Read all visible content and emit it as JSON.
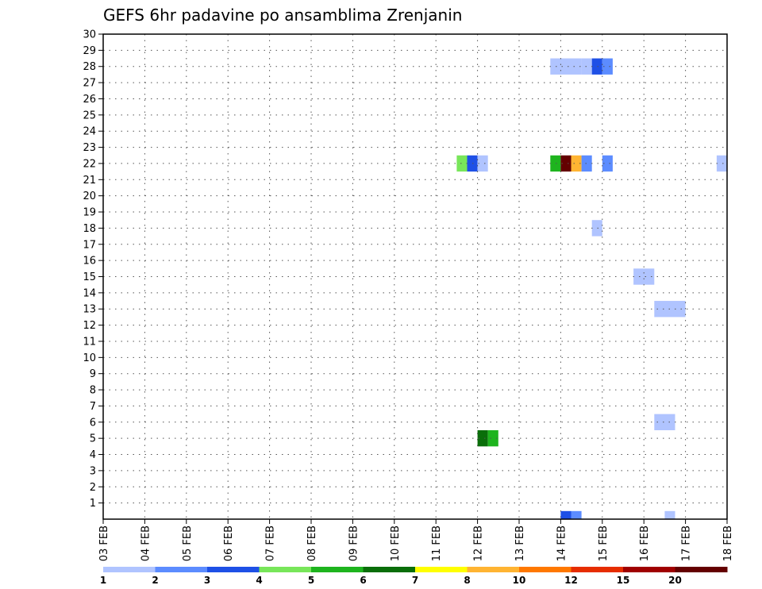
{
  "chart_data": {
    "type": "heatmap",
    "title": "GEFS 6hr padavine po ansamblima Zrenjanin",
    "x_tick_labels": [
      "03 FEB",
      "04 FEB",
      "05 FEB",
      "06 FEB",
      "07 FEB",
      "08 FEB",
      "09 FEB",
      "10 FEB",
      "11 FEB",
      "12 FEB",
      "13 FEB",
      "14 FEB",
      "15 FEB",
      "16 FEB",
      "17 FEB",
      "18 FEB"
    ],
    "x_range_days": [
      0,
      15
    ],
    "y_tick_labels": [
      "1",
      "2",
      "3",
      "4",
      "5",
      "6",
      "7",
      "8",
      "9",
      "10",
      "11",
      "12",
      "13",
      "14",
      "15",
      "16",
      "17",
      "18",
      "19",
      "20",
      "21",
      "22",
      "23",
      "24",
      "25",
      "26",
      "27",
      "28",
      "29",
      "30"
    ],
    "y_range": [
      0,
      30
    ],
    "grid": true,
    "colorbar": {
      "colors": [
        "#b0c4ff",
        "#5c8cff",
        "#1e50e6",
        "#78e65a",
        "#1eb41e",
        "#0a6e0a",
        "#ffff00",
        "#ffb432",
        "#ff7800",
        "#e62d00",
        "#a00000",
        "#640000"
      ],
      "labels": [
        {
          "text": "1",
          "pos": 0
        },
        {
          "text": "2",
          "pos": 1
        },
        {
          "text": "3",
          "pos": 2
        },
        {
          "text": "4",
          "pos": 3
        },
        {
          "text": "5",
          "pos": 4
        },
        {
          "text": "6",
          "pos": 5
        },
        {
          "text": "7",
          "pos": 6
        },
        {
          "text": "8",
          "pos": 7
        },
        {
          "text": "10",
          "pos": 8
        },
        {
          "text": "12",
          "pos": 9
        },
        {
          "text": "15",
          "pos": 10
        },
        {
          "text": "20",
          "pos": 11
        }
      ]
    },
    "cells": [
      {
        "member": 28,
        "day_start": 10.75,
        "day_end": 11.5,
        "color_index": 0
      },
      {
        "member": 28,
        "day_start": 11.5,
        "day_end": 11.75,
        "color_index": 0
      },
      {
        "member": 28,
        "day_start": 11.75,
        "day_end": 12.0,
        "color_index": 2
      },
      {
        "member": 28,
        "day_start": 12.0,
        "day_end": 12.25,
        "color_index": 1
      },
      {
        "member": 22,
        "day_start": 8.5,
        "day_end": 8.75,
        "color_index": 3
      },
      {
        "member": 22,
        "day_start": 8.75,
        "day_end": 9.0,
        "color_index": 2
      },
      {
        "member": 22,
        "day_start": 9.0,
        "day_end": 9.25,
        "color_index": 0
      },
      {
        "member": 22,
        "day_start": 10.75,
        "day_end": 11.0,
        "color_index": 4
      },
      {
        "member": 22,
        "day_start": 11.0,
        "day_end": 11.25,
        "color_index": 11
      },
      {
        "member": 22,
        "day_start": 11.25,
        "day_end": 11.5,
        "color_index": 7
      },
      {
        "member": 22,
        "day_start": 11.5,
        "day_end": 11.75,
        "color_index": 1
      },
      {
        "member": 22,
        "day_start": 12.0,
        "day_end": 12.25,
        "color_index": 1
      },
      {
        "member": 22,
        "day_start": 14.75,
        "day_end": 15.0,
        "color_index": 0
      },
      {
        "member": 18,
        "day_start": 11.75,
        "day_end": 12.0,
        "color_index": 0
      },
      {
        "member": 15,
        "day_start": 12.75,
        "day_end": 13.25,
        "color_index": 0
      },
      {
        "member": 13,
        "day_start": 13.25,
        "day_end": 14.0,
        "color_index": 0
      },
      {
        "member": 6,
        "day_start": 13.25,
        "day_end": 13.75,
        "color_index": 0
      },
      {
        "member": 5,
        "day_start": 9.0,
        "day_end": 9.25,
        "color_index": 5
      },
      {
        "member": 5,
        "day_start": 9.25,
        "day_end": 9.5,
        "color_index": 4
      },
      {
        "member": 0,
        "day_start": 11.0,
        "day_end": 11.25,
        "color_index": 2
      },
      {
        "member": 0,
        "day_start": 11.25,
        "day_end": 11.5,
        "color_index": 1
      },
      {
        "member": 0,
        "day_start": 13.5,
        "day_end": 13.75,
        "color_index": 0
      }
    ]
  }
}
